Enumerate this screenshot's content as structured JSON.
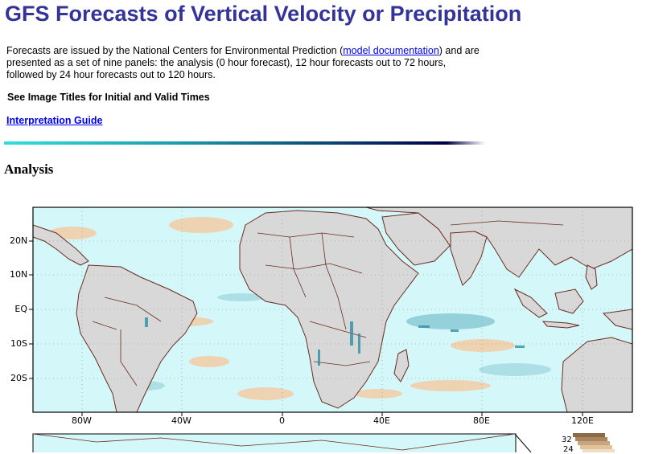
{
  "page": {
    "title": "GFS Forecasts of Vertical Velocity or Precipitation",
    "intro_before_link": "Forecasts are issued by the National Centers for Environmental Prediction (",
    "intro_link": "model documentation",
    "intro_after_link": ") and are presented as a set of nine panels: the analysis (0 hour forecast), 12 hour forecasts out to 72 hours, followed by 24 hour forecasts out to 120 hours.",
    "subhead": "See Image Titles for Initial and Valid Times",
    "guide_link": "Interpretation Guide",
    "section_title": "Analysis"
  },
  "map": {
    "lat_labels": [
      "20N",
      "10N",
      "EQ",
      "10S",
      "20S"
    ],
    "lon_labels": [
      "80W",
      "40W",
      "0",
      "40E",
      "80E",
      "120E"
    ],
    "colors": {
      "ocean": "#d4f8fa",
      "land": "#d8d8d8",
      "border": "#6b2a1e",
      "ascent": "#2f8fa6",
      "descent": "#f7b27a",
      "title_blue": "#333399"
    },
    "legend_visible": [
      "32",
      "24"
    ]
  }
}
